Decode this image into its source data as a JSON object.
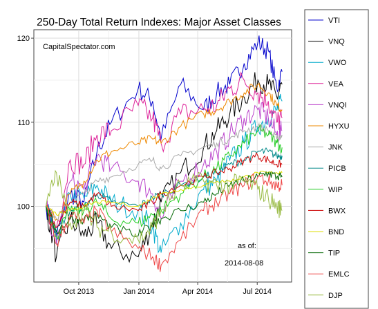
{
  "chart_data": {
    "type": "line",
    "title": "250-Day Total Return Indexes: Major Asset Classes",
    "watermark": "CapitalSpectator.com",
    "as_of_label": "as of:",
    "as_of_date": "2014-08-08",
    "xlabel": "",
    "ylabel": "",
    "ylim": [
      91,
      121
    ],
    "yticks": [
      100,
      110,
      120
    ],
    "xlim": [
      "2013-08-08",
      "2014-08-08"
    ],
    "xticks": [
      {
        "date": "2013-10-01",
        "label": "Oct 2013"
      },
      {
        "date": "2014-01-01",
        "label": "Jan 2014"
      },
      {
        "date": "2014-04-01",
        "label": "Apr 2014"
      },
      {
        "date": "2014-07-01",
        "label": "Jul 2014"
      }
    ],
    "grid": true,
    "legend_position": "right",
    "series": [
      {
        "name": "VTI",
        "color": "#0000cc",
        "x": [
          "2013-08-12",
          "2013-08-28",
          "2013-09-18",
          "2013-10-09",
          "2013-10-29",
          "2013-11-20",
          "2013-12-31",
          "2014-01-22",
          "2014-02-04",
          "2014-03-06",
          "2014-04-10",
          "2014-04-30",
          "2014-05-20",
          "2014-06-11",
          "2014-07-02",
          "2014-07-18",
          "2014-07-31",
          "2014-08-08"
        ],
        "values": [
          100,
          96.5,
          101.5,
          100.5,
          106.5,
          110.0,
          114.0,
          112.5,
          108.0,
          114.5,
          111.5,
          113.5,
          114.5,
          117.0,
          119.5,
          118.5,
          114.0,
          116.0
        ]
      },
      {
        "name": "VNQ",
        "color": "#000000",
        "x": [
          "2013-08-12",
          "2013-08-28",
          "2013-09-18",
          "2013-10-09",
          "2013-10-29",
          "2013-11-20",
          "2013-12-31",
          "2014-01-22",
          "2014-02-04",
          "2014-03-06",
          "2014-04-10",
          "2014-04-30",
          "2014-05-20",
          "2014-06-11",
          "2014-07-02",
          "2014-07-18",
          "2014-07-31",
          "2014-08-08"
        ],
        "values": [
          100,
          94.0,
          98.5,
          96.5,
          98.0,
          95.0,
          94.0,
          98.0,
          100.5,
          104.0,
          107.0,
          109.0,
          111.0,
          113.0,
          115.0,
          114.5,
          113.0,
          114.5
        ]
      },
      {
        "name": "VWO",
        "color": "#00aacc",
        "x": [
          "2013-08-12",
          "2013-08-28",
          "2013-09-18",
          "2013-10-09",
          "2013-10-29",
          "2013-11-20",
          "2013-12-31",
          "2014-01-22",
          "2014-02-04",
          "2014-03-06",
          "2014-04-10",
          "2014-04-30",
          "2014-05-20",
          "2014-06-11",
          "2014-07-02",
          "2014-07-18",
          "2014-07-31",
          "2014-08-08"
        ],
        "values": [
          100,
          96.0,
          101.5,
          101.0,
          102.5,
          100.5,
          99.5,
          97.5,
          94.5,
          98.0,
          102.0,
          103.0,
          105.5,
          107.5,
          109.5,
          110.5,
          111.5,
          112.5
        ]
      },
      {
        "name": "VEA",
        "color": "#dd2299",
        "x": [
          "2013-08-12",
          "2013-08-28",
          "2013-09-18",
          "2013-10-09",
          "2013-10-29",
          "2013-11-20",
          "2013-12-31",
          "2014-01-22",
          "2014-02-04",
          "2014-03-06",
          "2014-04-10",
          "2014-04-30",
          "2014-05-20",
          "2014-06-11",
          "2014-07-02",
          "2014-07-18",
          "2014-07-31",
          "2014-08-08"
        ],
        "values": [
          100,
          97.5,
          105.5,
          105.0,
          108.5,
          109.0,
          112.0,
          110.5,
          107.5,
          111.0,
          111.5,
          112.0,
          114.0,
          115.0,
          113.5,
          112.5,
          110.0,
          110.5
        ]
      },
      {
        "name": "VNQI",
        "color": "#bb44cc",
        "x": [
          "2013-08-12",
          "2013-08-28",
          "2013-09-18",
          "2013-10-09",
          "2013-10-29",
          "2013-11-20",
          "2013-12-31",
          "2014-01-22",
          "2014-02-04",
          "2014-03-06",
          "2014-04-10",
          "2014-04-30",
          "2014-05-20",
          "2014-06-11",
          "2014-07-02",
          "2014-07-18",
          "2014-07-31",
          "2014-08-08"
        ],
        "values": [
          100,
          95.5,
          103.0,
          102.0,
          106.0,
          104.5,
          103.0,
          101.5,
          98.5,
          103.0,
          105.0,
          106.5,
          108.5,
          110.5,
          111.5,
          110.5,
          108.5,
          109.0
        ]
      },
      {
        "name": "HYXU",
        "color": "#ee8800",
        "x": [
          "2013-08-12",
          "2013-08-28",
          "2013-09-18",
          "2013-10-09",
          "2013-10-29",
          "2013-11-20",
          "2013-12-31",
          "2014-01-22",
          "2014-02-04",
          "2014-03-06",
          "2014-04-10",
          "2014-04-30",
          "2014-05-20",
          "2014-06-11",
          "2014-07-02",
          "2014-07-18",
          "2014-07-31",
          "2014-08-08"
        ],
        "values": [
          100,
          98.5,
          101.5,
          103.0,
          105.5,
          106.5,
          107.5,
          108.0,
          107.5,
          109.5,
          111.0,
          111.5,
          112.5,
          113.5,
          114.5,
          113.5,
          112.0,
          111.5
        ]
      },
      {
        "name": "JNK",
        "color": "#aaaaaa",
        "x": [
          "2013-08-12",
          "2013-08-28",
          "2013-09-18",
          "2013-10-09",
          "2013-10-29",
          "2013-11-20",
          "2013-12-31",
          "2014-01-22",
          "2014-02-04",
          "2014-03-06",
          "2014-04-10",
          "2014-04-30",
          "2014-05-20",
          "2014-06-11",
          "2014-07-02",
          "2014-07-18",
          "2014-07-31",
          "2014-08-08"
        ],
        "values": [
          100,
          98.5,
          100.5,
          101.5,
          103.0,
          103.5,
          105.0,
          105.5,
          104.5,
          106.0,
          107.0,
          107.5,
          108.0,
          109.0,
          109.5,
          109.0,
          108.0,
          108.5
        ]
      },
      {
        "name": "PICB",
        "color": "#008888",
        "x": [
          "2013-08-12",
          "2013-08-28",
          "2013-09-18",
          "2013-10-09",
          "2013-10-29",
          "2013-11-20",
          "2013-12-31",
          "2014-01-22",
          "2014-02-04",
          "2014-03-06",
          "2014-04-10",
          "2014-04-30",
          "2014-05-20",
          "2014-06-11",
          "2014-07-02",
          "2014-07-18",
          "2014-07-31",
          "2014-08-08"
        ],
        "values": [
          100,
          97.0,
          99.5,
          100.0,
          101.5,
          100.5,
          100.0,
          101.0,
          101.5,
          102.5,
          103.5,
          104.0,
          105.0,
          105.5,
          106.5,
          106.5,
          106.0,
          106.0
        ]
      },
      {
        "name": "WIP",
        "color": "#22cc22",
        "x": [
          "2013-08-12",
          "2013-08-28",
          "2013-09-18",
          "2013-10-09",
          "2013-10-29",
          "2013-11-20",
          "2013-12-31",
          "2014-01-22",
          "2014-02-04",
          "2014-03-06",
          "2014-04-10",
          "2014-04-30",
          "2014-05-20",
          "2014-06-11",
          "2014-07-02",
          "2014-07-18",
          "2014-07-31",
          "2014-08-08"
        ],
        "values": [
          100,
          96.5,
          99.5,
          99.5,
          100.5,
          98.5,
          98.0,
          99.0,
          99.5,
          101.5,
          103.5,
          104.5,
          106.0,
          107.5,
          109.0,
          108.5,
          107.5,
          107.0
        ]
      },
      {
        "name": "BWX",
        "color": "#cc0000",
        "x": [
          "2013-08-12",
          "2013-08-28",
          "2013-09-18",
          "2013-10-09",
          "2013-10-29",
          "2013-11-20",
          "2013-12-31",
          "2014-01-22",
          "2014-02-04",
          "2014-03-06",
          "2014-04-10",
          "2014-04-30",
          "2014-05-20",
          "2014-06-11",
          "2014-07-02",
          "2014-07-18",
          "2014-07-31",
          "2014-08-08"
        ],
        "values": [
          100,
          97.5,
          100.5,
          100.0,
          101.5,
          100.0,
          99.5,
          100.5,
          101.5,
          102.5,
          103.5,
          104.0,
          104.5,
          105.5,
          106.0,
          105.5,
          105.0,
          105.0
        ]
      },
      {
        "name": "BND",
        "color": "#dddd00",
        "x": [
          "2013-08-12",
          "2013-08-28",
          "2013-09-18",
          "2013-10-09",
          "2013-10-29",
          "2013-11-20",
          "2013-12-31",
          "2014-01-22",
          "2014-02-04",
          "2014-03-06",
          "2014-04-10",
          "2014-04-30",
          "2014-05-20",
          "2014-06-11",
          "2014-07-02",
          "2014-07-18",
          "2014-07-31",
          "2014-08-08"
        ],
        "values": [
          100,
          99.0,
          99.5,
          100.0,
          100.5,
          100.5,
          100.0,
          101.0,
          101.5,
          102.0,
          102.5,
          103.0,
          103.0,
          103.5,
          104.0,
          104.0,
          104.0,
          104.0
        ]
      },
      {
        "name": "TIP",
        "color": "#006600",
        "x": [
          "2013-08-12",
          "2013-08-28",
          "2013-09-18",
          "2013-10-09",
          "2013-10-29",
          "2013-11-20",
          "2013-12-31",
          "2014-01-22",
          "2014-02-04",
          "2014-03-06",
          "2014-04-10",
          "2014-04-30",
          "2014-05-20",
          "2014-06-11",
          "2014-07-02",
          "2014-07-18",
          "2014-07-31",
          "2014-08-08"
        ],
        "values": [
          100,
          97.0,
          98.5,
          98.5,
          99.0,
          97.5,
          96.5,
          98.0,
          98.5,
          99.5,
          100.5,
          101.5,
          102.5,
          103.0,
          103.5,
          104.0,
          103.5,
          103.5
        ]
      },
      {
        "name": "EMLC",
        "color": "#ee4444",
        "x": [
          "2013-08-12",
          "2013-08-28",
          "2013-09-18",
          "2013-10-09",
          "2013-10-29",
          "2013-11-20",
          "2013-12-31",
          "2014-01-22",
          "2014-02-04",
          "2014-03-06",
          "2014-04-10",
          "2014-04-30",
          "2014-05-20",
          "2014-06-11",
          "2014-07-02",
          "2014-07-18",
          "2014-07-31",
          "2014-08-08"
        ],
        "values": [
          100,
          95.5,
          99.0,
          98.0,
          99.5,
          97.0,
          95.0,
          94.0,
          93.0,
          96.0,
          99.5,
          100.5,
          101.5,
          102.5,
          103.5,
          103.0,
          102.5,
          102.5
        ]
      },
      {
        "name": "DJP",
        "color": "#99bb44",
        "x": [
          "2013-08-12",
          "2013-08-28",
          "2013-09-18",
          "2013-10-09",
          "2013-10-29",
          "2013-11-20",
          "2013-12-31",
          "2014-01-22",
          "2014-02-04",
          "2014-03-06",
          "2014-04-10",
          "2014-04-30",
          "2014-05-20",
          "2014-06-11",
          "2014-07-02",
          "2014-07-18",
          "2014-07-31",
          "2014-08-08"
        ],
        "values": [
          100,
          104.0,
          98.0,
          99.5,
          97.5,
          97.0,
          96.0,
          97.5,
          99.5,
          102.5,
          103.0,
          102.5,
          102.5,
          103.0,
          102.0,
          101.0,
          100.0,
          99.5
        ]
      }
    ]
  }
}
